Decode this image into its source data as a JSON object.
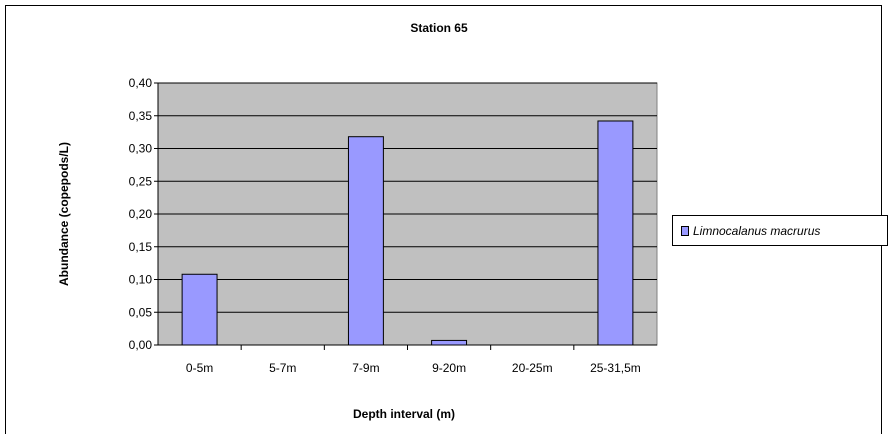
{
  "chart_data": {
    "type": "bar",
    "title": "Station 65",
    "xlabel": "Depth interval (m)",
    "ylabel": "Abundance (copepods/L)",
    "categories": [
      "0-5m",
      "5-7m",
      "7-9m",
      "9-20m",
      "20-25m",
      "25-31,5m"
    ],
    "series": [
      {
        "name": "Limnocalanus macrurus",
        "values": [
          0.108,
          0.0,
          0.318,
          0.007,
          0.0,
          0.342
        ]
      }
    ],
    "ylim": [
      0,
      0.4
    ],
    "yticks": [
      "0,00",
      "0,05",
      "0,10",
      "0,15",
      "0,20",
      "0,25",
      "0,30",
      "0,35",
      "0,40"
    ],
    "grid": true,
    "legend_position": "right",
    "colors": {
      "bar_fill": "#9999ff",
      "bar_stroke": "#000000",
      "plot_bg": "#c0c0c0"
    }
  }
}
